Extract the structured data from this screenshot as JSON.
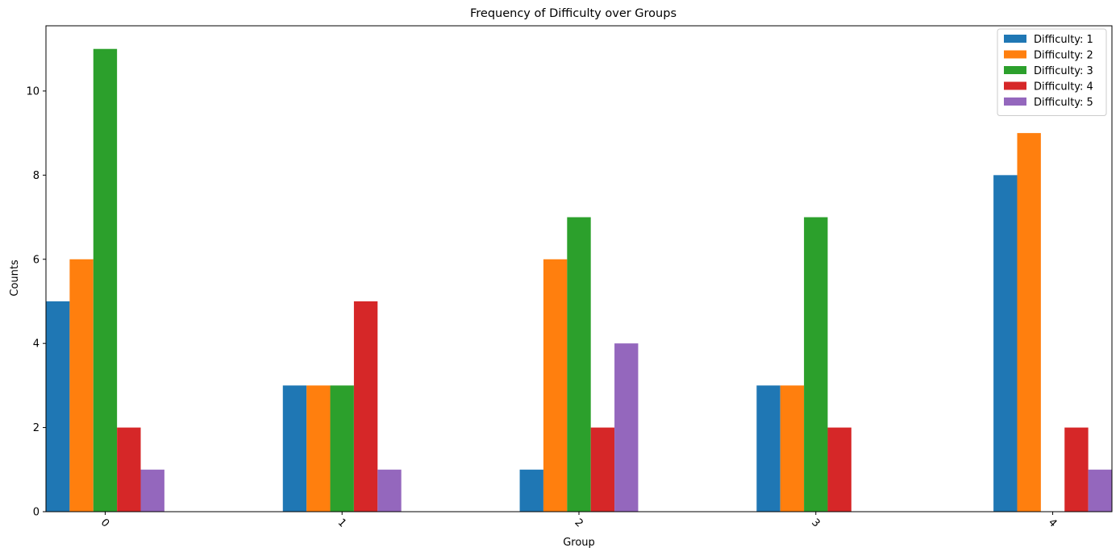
{
  "chart_data": {
    "type": "bar",
    "title": "Frequency of Difficulty over Groups",
    "xlabel": "Group",
    "ylabel": "Counts",
    "categories": [
      "0",
      "1",
      "2",
      "3",
      "4"
    ],
    "ylim": [
      0,
      11.55
    ],
    "yticks": [
      0,
      2,
      4,
      6,
      8,
      10
    ],
    "grid": false,
    "legend_position": "top-right",
    "series": [
      {
        "name": "Difficulty: 1",
        "color": "#1f77b4",
        "values": [
          5,
          3,
          1,
          3,
          8
        ]
      },
      {
        "name": "Difficulty: 2",
        "color": "#ff7f0e",
        "values": [
          6,
          3,
          6,
          3,
          9
        ]
      },
      {
        "name": "Difficulty: 3",
        "color": "#2ca02c",
        "values": [
          11,
          3,
          7,
          7,
          0
        ]
      },
      {
        "name": "Difficulty: 4",
        "color": "#d62728",
        "values": [
          2,
          5,
          2,
          2,
          2
        ]
      },
      {
        "name": "Difficulty: 5",
        "color": "#9467bd",
        "values": [
          1,
          1,
          4,
          0,
          1
        ]
      }
    ]
  }
}
